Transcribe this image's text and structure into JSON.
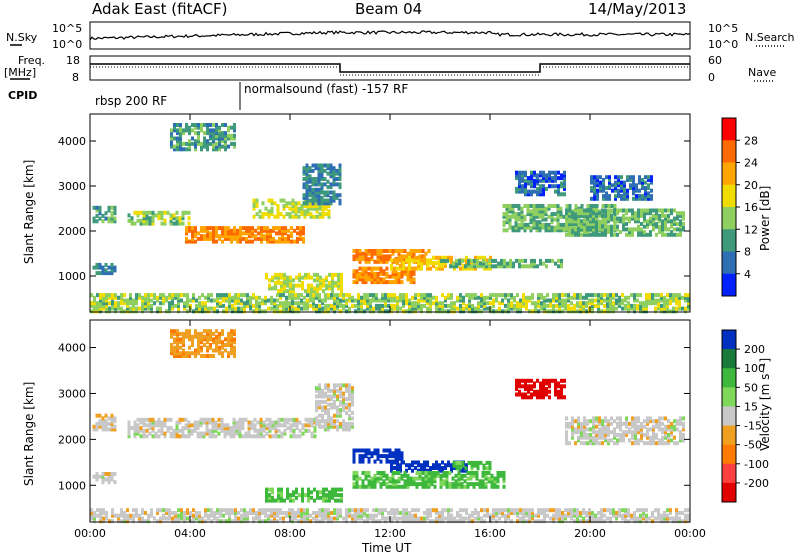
{
  "header": {
    "title": "Adak East (fitACF)",
    "beam": "Beam 04",
    "date": "14/May/2013"
  },
  "panels": {
    "nsky": {
      "left_label": "N.Sky",
      "right_label": "N.Search",
      "ticks": [
        "10^5",
        "10^0"
      ]
    },
    "freq": {
      "left_label": "Freq.",
      "unit_label": "[MHz]",
      "left_ticks": [
        "18",
        "8"
      ],
      "right_label": "Nave",
      "right_ticks": [
        "60",
        "0"
      ]
    },
    "cpid": {
      "label": "CPID",
      "segments": [
        "rbsp 200 RF",
        "normalsound (fast) -157 RF"
      ]
    }
  },
  "power_colorbar": {
    "label": "Power [dB]",
    "ticks": [
      "28",
      "24",
      "20",
      "16",
      "12",
      "8",
      "4"
    ],
    "colors": [
      "#ff0000",
      "#ff6a00",
      "#ffa500",
      "#f0dc00",
      "#8fcf60",
      "#3e9a7a",
      "#2e6fb4",
      "#0020ff"
    ]
  },
  "velocity_colorbar": {
    "label": "Velocity [m s⁻¹]",
    "ticks": [
      "200",
      "100",
      "50",
      "15",
      "-15",
      "-50",
      "-100",
      "-200"
    ],
    "colors": [
      "#0030c0",
      "#1a7a3a",
      "#3db83d",
      "#7fd85a",
      "#c8c8c8",
      "#f0a020",
      "#ff7a00",
      "#ff4040",
      "#e00000"
    ]
  },
  "chart_data": [
    {
      "type": "heatmap",
      "name": "power",
      "ylabel": "Slant Range [km]",
      "yticks": [
        1000,
        2000,
        3000,
        4000
      ],
      "ylim": [
        200,
        4600
      ],
      "xlim": [
        0,
        24
      ],
      "features": [
        {
          "t0": 3.2,
          "t1": 5.8,
          "r0": 3800,
          "r1": 4400,
          "v": 10
        },
        {
          "t0": 0.1,
          "t1": 1.0,
          "r0": 2200,
          "r1": 2550,
          "v": 10
        },
        {
          "t0": 0.1,
          "t1": 1.0,
          "r0": 1050,
          "r1": 1250,
          "v": 8
        },
        {
          "t0": 1.5,
          "t1": 4.0,
          "r0": 2150,
          "r1": 2450,
          "v": 14
        },
        {
          "t0": 3.8,
          "t1": 8.5,
          "r0": 1750,
          "r1": 2100,
          "v": 24
        },
        {
          "t0": 6.5,
          "t1": 9.5,
          "r0": 2300,
          "r1": 2700,
          "v": 16
        },
        {
          "t0": 8.5,
          "t1": 10.0,
          "r0": 2600,
          "r1": 3500,
          "v": 8
        },
        {
          "t0": 7.0,
          "t1": 10.0,
          "r0": 650,
          "r1": 1050,
          "v": 16
        },
        {
          "t0": 10.5,
          "t1": 13.5,
          "r0": 1300,
          "r1": 1550,
          "v": 24
        },
        {
          "t0": 10.5,
          "t1": 13.0,
          "r0": 850,
          "r1": 1200,
          "v": 24
        },
        {
          "t0": 12.0,
          "t1": 16.0,
          "r0": 1150,
          "r1": 1400,
          "v": 20
        },
        {
          "t0": 14.0,
          "t1": 19.0,
          "r0": 1200,
          "r1": 1350,
          "v": 12
        },
        {
          "t0": 16.5,
          "t1": 21.0,
          "r0": 2000,
          "r1": 2600,
          "v": 12
        },
        {
          "t0": 17.0,
          "t1": 19.0,
          "r0": 2800,
          "r1": 3300,
          "v": 6
        },
        {
          "t0": 19.0,
          "t1": 23.8,
          "r0": 1900,
          "r1": 2500,
          "v": 12
        },
        {
          "t0": 20.0,
          "t1": 22.5,
          "r0": 2700,
          "r1": 3200,
          "v": 6
        },
        {
          "t0": 0.0,
          "t1": 24.0,
          "r0": 200,
          "r1": 600,
          "v": 14
        }
      ]
    },
    {
      "type": "heatmap",
      "name": "velocity",
      "ylabel": "Slant Range [km]",
      "xlabel": "Time UT",
      "xticks": [
        "00:00",
        "04:00",
        "08:00",
        "12:00",
        "16:00",
        "20:00",
        "00:00"
      ],
      "yticks": [
        1000,
        2000,
        3000,
        4000
      ],
      "ylim": [
        200,
        4600
      ],
      "xlim": [
        0,
        24
      ],
      "features": [
        {
          "t0": 3.2,
          "t1": 5.8,
          "r0": 3800,
          "r1": 4400,
          "v": -40
        },
        {
          "t0": 0.1,
          "t1": 1.0,
          "r0": 2200,
          "r1": 2550,
          "v": 0
        },
        {
          "t0": 0.1,
          "t1": 1.0,
          "r0": 1050,
          "r1": 1250,
          "v": 0
        },
        {
          "t0": 1.5,
          "t1": 9.0,
          "r0": 2050,
          "r1": 2450,
          "v": 0
        },
        {
          "t0": 9.0,
          "t1": 10.5,
          "r0": 2200,
          "r1": 3200,
          "v": 0
        },
        {
          "t0": 10.5,
          "t1": 12.5,
          "r0": 1500,
          "r1": 1800,
          "v": 220
        },
        {
          "t0": 12.0,
          "t1": 15.0,
          "r0": 1300,
          "r1": 1500,
          "v": 220
        },
        {
          "t0": 10.5,
          "t1": 16.5,
          "r0": 950,
          "r1": 1300,
          "v": 60
        },
        {
          "t0": 7.0,
          "t1": 10.0,
          "r0": 650,
          "r1": 900,
          "v": 60
        },
        {
          "t0": 14.5,
          "t1": 16.0,
          "r0": 1350,
          "r1": 1500,
          "v": 60
        },
        {
          "t0": 17.0,
          "t1": 19.0,
          "r0": 2900,
          "r1": 3300,
          "v": -220
        },
        {
          "t0": 19.0,
          "t1": 23.8,
          "r0": 1900,
          "r1": 2500,
          "v": 0
        },
        {
          "t0": 0.0,
          "t1": 24.0,
          "r0": 200,
          "r1": 500,
          "v": 0
        }
      ]
    }
  ]
}
